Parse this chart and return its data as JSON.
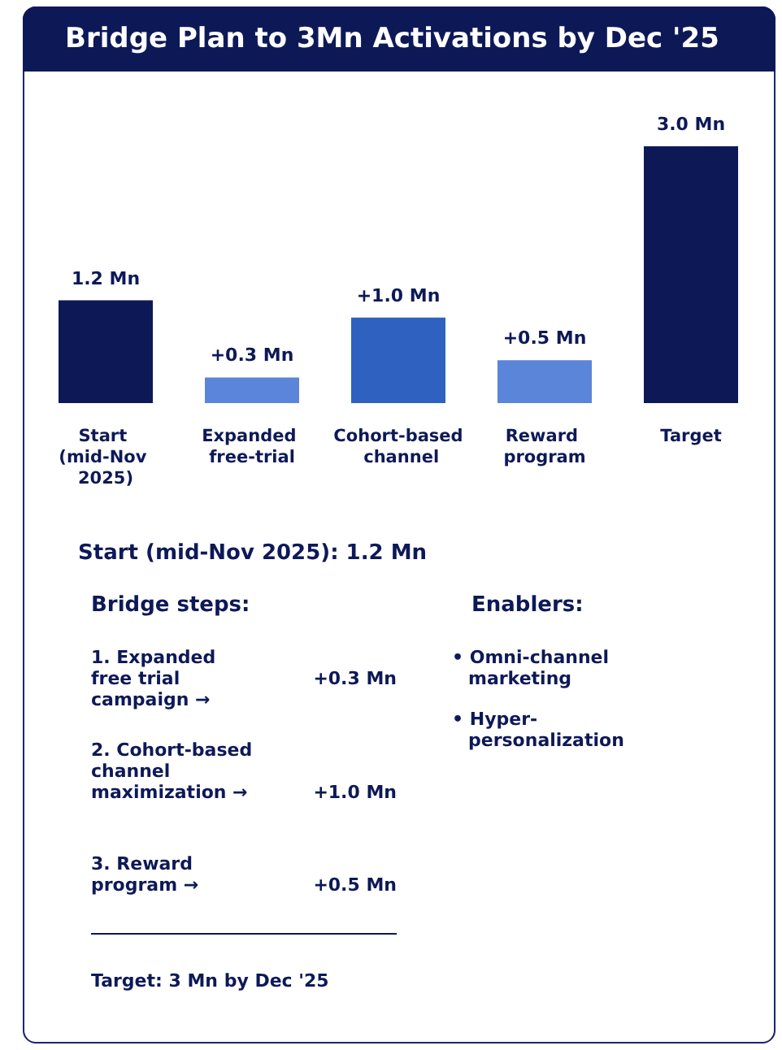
{
  "chart_data": {
    "type": "bar",
    "title": "Bridge Plan to 3Mn Activations by Dec '25",
    "categories": [
      "Start (mid-Nov 2025)",
      "Expanded free-trial",
      "Cohort-based channel",
      "Reward program",
      "Target"
    ],
    "values": [
      1.2,
      0.3,
      1.0,
      0.5,
      3.0
    ],
    "colors": [
      "#0d1957",
      "#5b85d9",
      "#2f62c0",
      "#5b85d9",
      "#0d1957"
    ],
    "value_labels": [
      "1.2 Mn",
      "+0.3 Mn",
      "+1.0 Mn",
      "+0.5 Mn",
      "3.0 Mn"
    ],
    "annotations": [
      "Start (mid-Nov 2025): 1.2 Mn",
      "Bridge steps:",
      "Enablers:",
      "1. Expanded free trial campaign →",
      "+0.3 Mn",
      "2. Cohort-based channel maximization →",
      "+1.0 Mn",
      "3. Reward program →",
      "+0.5 Mn",
      "• Omni-channel marketing",
      "• Hyper-personalization",
      "Target: 3 Mn by Dec '25"
    ]
  }
}
